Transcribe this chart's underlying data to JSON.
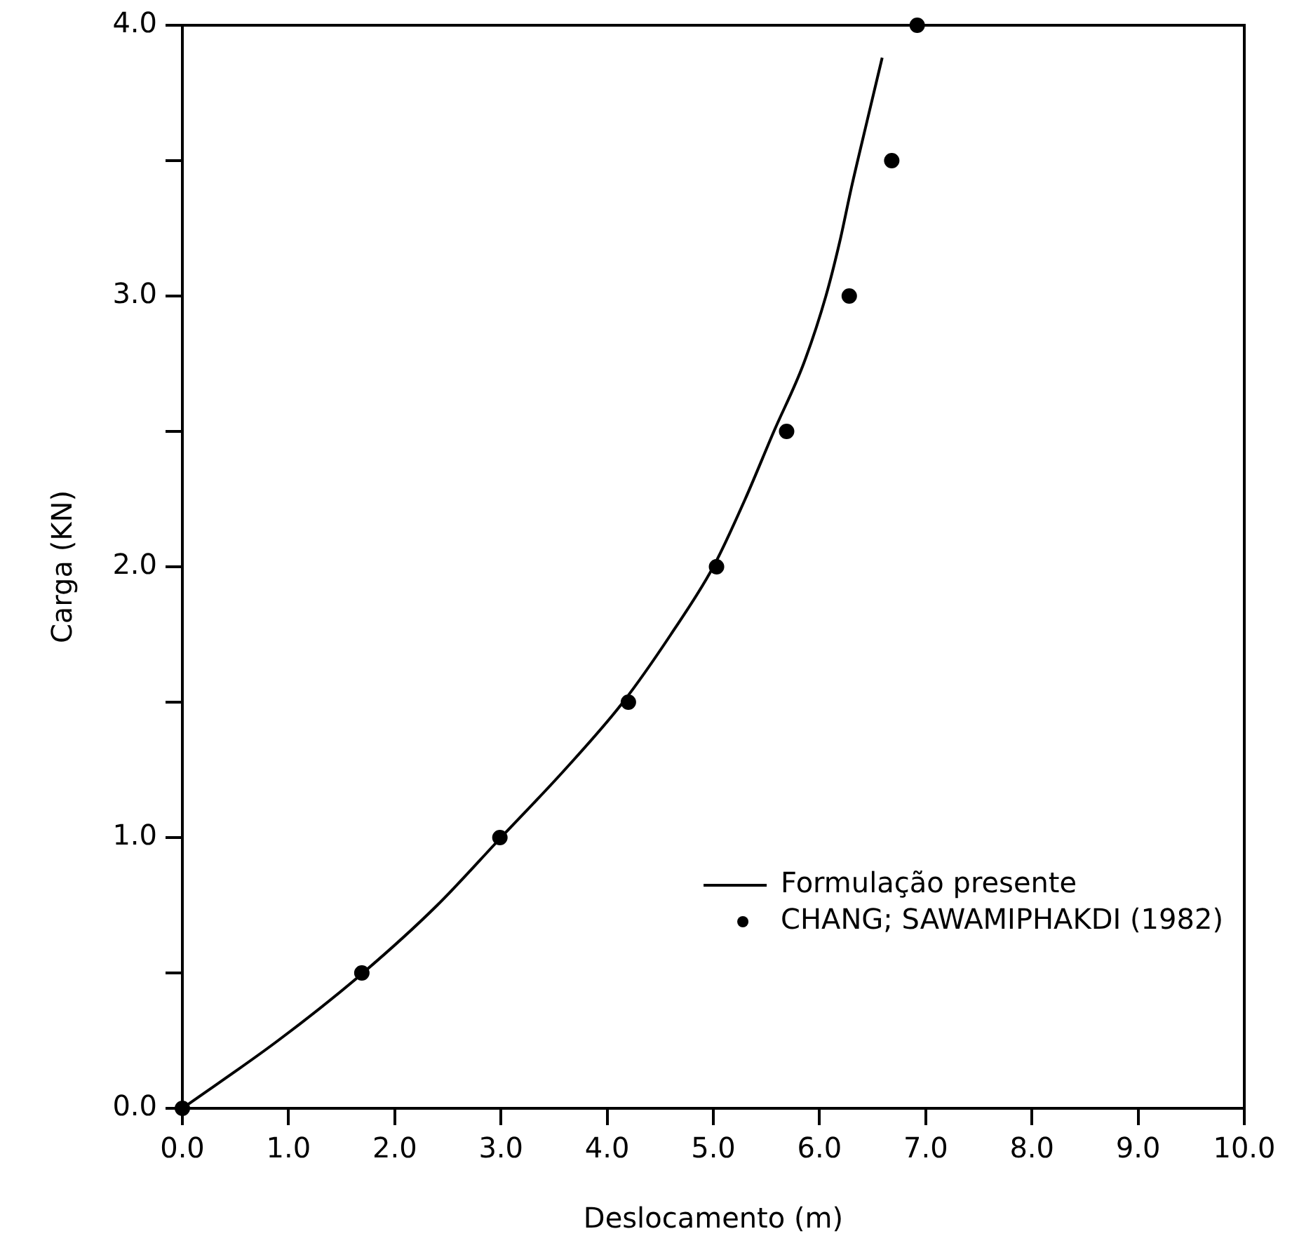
{
  "chart_data": {
    "type": "line",
    "xlabel": "Deslocamento (m)",
    "ylabel": "Carga (KN)",
    "xlim": [
      0,
      10
    ],
    "ylim": [
      0,
      4
    ],
    "xticks": [
      {
        "value": 0,
        "label": "0.0"
      },
      {
        "value": 1,
        "label": "1.0"
      },
      {
        "value": 2,
        "label": "2.0"
      },
      {
        "value": 3,
        "label": "3.0"
      },
      {
        "value": 4,
        "label": "4.0"
      },
      {
        "value": 5,
        "label": "5.0"
      },
      {
        "value": 6,
        "label": "6.0"
      },
      {
        "value": 7,
        "label": "7.0"
      },
      {
        "value": 8,
        "label": "8.0"
      },
      {
        "value": 9,
        "label": "9.0"
      },
      {
        "value": 10,
        "label": "10.0"
      }
    ],
    "yticks": [
      {
        "value": 0,
        "label": "0.0"
      },
      {
        "value": 0.5,
        "label": null
      },
      {
        "value": 1,
        "label": "1.0"
      },
      {
        "value": 1.5,
        "label": null
      },
      {
        "value": 2,
        "label": "2.0"
      },
      {
        "value": 2.5,
        "label": null
      },
      {
        "value": 3,
        "label": "3.0"
      },
      {
        "value": 3.5,
        "label": null
      },
      {
        "value": 4,
        "label": "4.0"
      }
    ],
    "grid": false,
    "legend": "bottom right",
    "series": [
      {
        "name": "Formulação presente",
        "color": "#000000",
        "marker": "none",
        "line_style": "solid",
        "x": [
          0,
          0.9,
          1.7,
          2.4,
          3.0,
          3.6,
          4.15,
          4.6,
          5.0,
          5.3,
          5.57,
          5.85,
          6.06,
          6.19,
          6.3,
          6.45,
          6.59
        ],
        "values": [
          0,
          0.25,
          0.5,
          0.75,
          1.0,
          1.25,
          1.5,
          1.75,
          2.0,
          2.25,
          2.5,
          2.75,
          3.0,
          3.2,
          3.4,
          3.65,
          3.88
        ]
      },
      {
        "name": "CHANG; SAWAMIPHAKDI (1982)",
        "type": "scatter",
        "color": "#000000",
        "marker": "circle",
        "x": [
          0,
          1.69,
          2.99,
          4.2,
          5.03,
          5.69,
          6.28,
          6.68,
          6.92
        ],
        "values": [
          0,
          0.5,
          1.0,
          1.5,
          2.0,
          2.5,
          3.0,
          3.5,
          4.0
        ]
      }
    ]
  }
}
